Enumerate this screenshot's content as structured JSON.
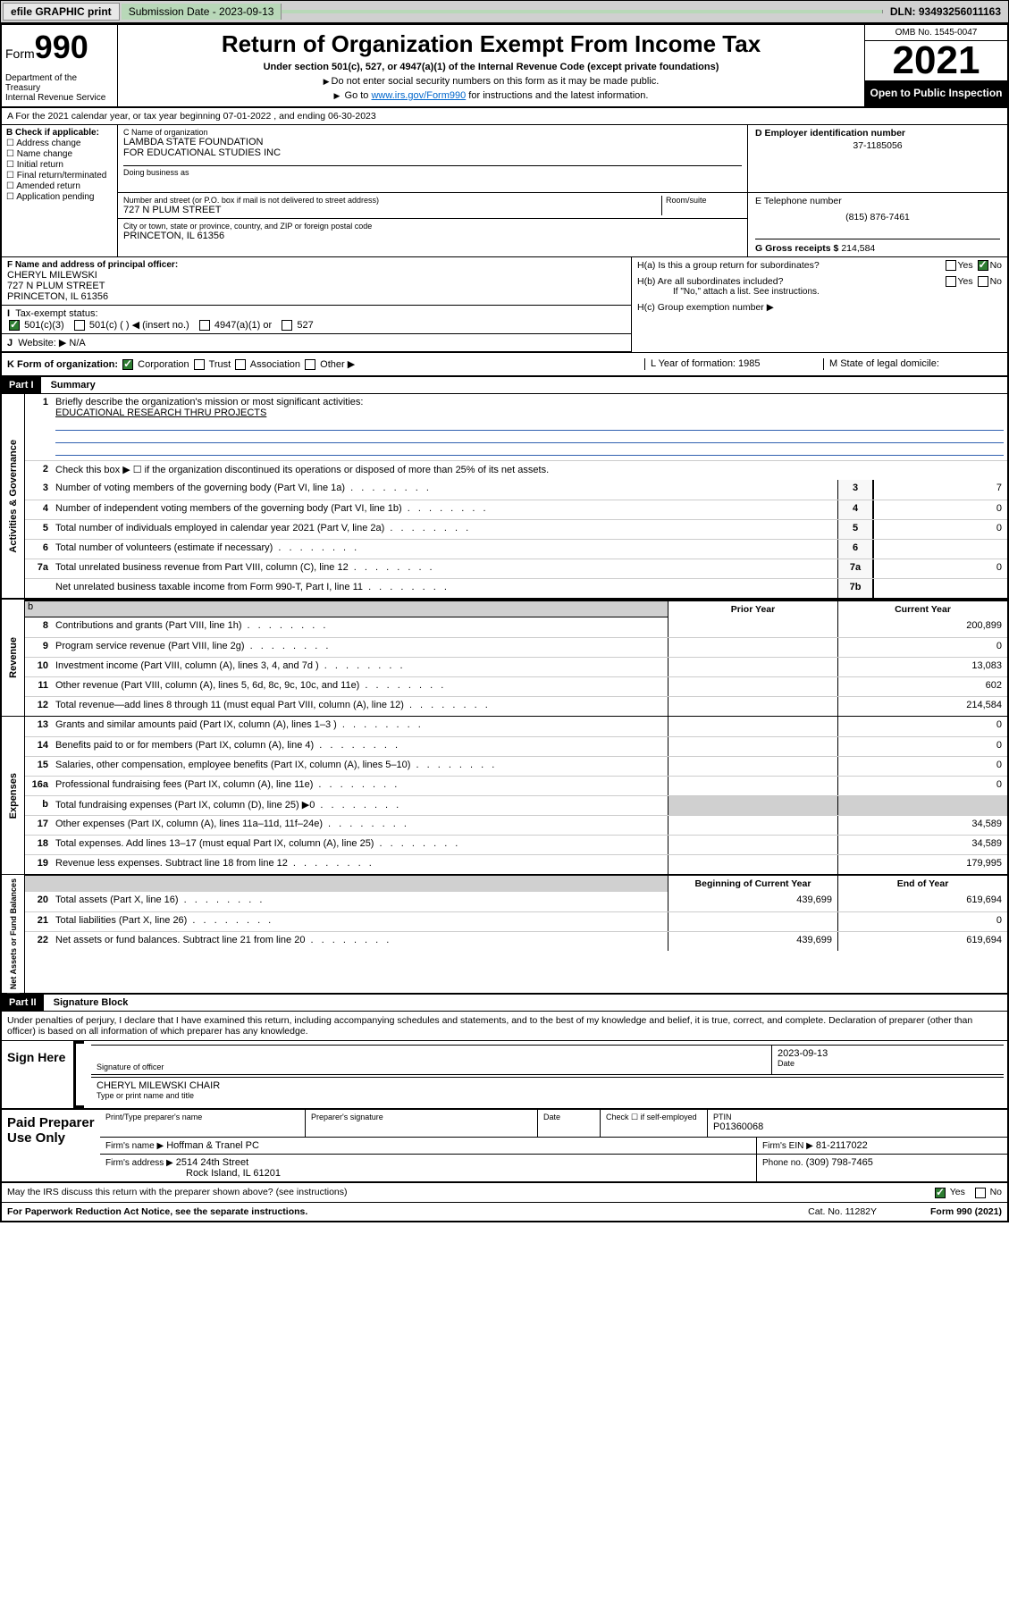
{
  "topbar": {
    "efile_btn": "efile GRAPHIC print",
    "submission_label": "Submission Date - 2023-09-13",
    "dln": "DLN: 93493256011163"
  },
  "header": {
    "form_prefix": "Form",
    "form_num": "990",
    "dept": "Department of the Treasury",
    "irs": "Internal Revenue Service",
    "title": "Return of Organization Exempt From Income Tax",
    "subtitle": "Under section 501(c), 527, or 4947(a)(1) of the Internal Revenue Code (except private foundations)",
    "note1": "Do not enter social security numbers on this form as it may be made public.",
    "note2_pre": "Go to ",
    "note2_link": "www.irs.gov/Form990",
    "note2_post": " for instructions and the latest information.",
    "omb": "OMB No. 1545-0047",
    "year": "2021",
    "open": "Open to Public Inspection"
  },
  "row_a": "A For the 2021 calendar year, or tax year beginning 07-01-2022    , and ending 06-30-2023",
  "col_b": {
    "title": "B Check if applicable:",
    "items": [
      "Address change",
      "Name change",
      "Initial return",
      "Final return/terminated",
      "Amended return",
      "Application pending"
    ]
  },
  "col_c": {
    "name_lbl": "C Name of organization",
    "name1": "LAMBDA STATE FOUNDATION",
    "name2": "FOR EDUCATIONAL STUDIES INC",
    "dba_lbl": "Doing business as",
    "street_lbl": "Number and street (or P.O. box if mail is not delivered to street address)",
    "room_lbl": "Room/suite",
    "street": "727 N PLUM STREET",
    "city_lbl": "City or town, state or province, country, and ZIP or foreign postal code",
    "city": "PRINCETON, IL  61356"
  },
  "col_d": {
    "ein_lbl": "D Employer identification number",
    "ein": "37-1185056",
    "phone_lbl": "E Telephone number",
    "phone": "(815) 876-7461",
    "gross_lbl": "G Gross receipts $",
    "gross": "214,584"
  },
  "f_block": {
    "lbl": "F Name and address of principal officer:",
    "name": "CHERYL MILEWSKI",
    "addr1": "727 N PLUM STREET",
    "addr2": "PRINCETON, IL  61356"
  },
  "h_block": {
    "ha": "H(a)  Is this a group return for subordinates?",
    "hb": "H(b)  Are all subordinates included?",
    "hb_note": "If \"No,\" attach a list. See instructions.",
    "hc": "H(c)  Group exemption number ▶",
    "yes": "Yes",
    "no": "No"
  },
  "i_row": {
    "lbl": "Tax-exempt status:",
    "opts": [
      "501(c)(3)",
      "501(c) (  ) ◀ (insert no.)",
      "4947(a)(1) or",
      "527"
    ]
  },
  "j_row": {
    "lbl": "Website: ▶",
    "val": "N/A"
  },
  "k_row": {
    "lbl": "K Form of organization:",
    "opts": [
      "Corporation",
      "Trust",
      "Association",
      "Other ▶"
    ],
    "l": "L Year of formation: 1985",
    "m": "M State of legal domicile:"
  },
  "part1": {
    "hdr": "Part I",
    "title": "Summary",
    "line1": "Briefly describe the organization's mission or most significant activities:",
    "mission": "EDUCATIONAL RESEARCH THRU PROJECTS",
    "line2": "Check this box ▶ ☐  if the organization discontinued its operations or disposed of more than 25% of its net assets.",
    "lines_gov": [
      {
        "n": "3",
        "t": "Number of voting members of the governing body (Part VI, line 1a)",
        "c": "3",
        "v": "7"
      },
      {
        "n": "4",
        "t": "Number of independent voting members of the governing body (Part VI, line 1b)",
        "c": "4",
        "v": "0"
      },
      {
        "n": "5",
        "t": "Total number of individuals employed in calendar year 2021 (Part V, line 2a)",
        "c": "5",
        "v": "0"
      },
      {
        "n": "6",
        "t": "Total number of volunteers (estimate if necessary)",
        "c": "6",
        "v": ""
      },
      {
        "n": "7a",
        "t": "Total unrelated business revenue from Part VIII, column (C), line 12",
        "c": "7a",
        "v": "0"
      },
      {
        "n": "",
        "t": "Net unrelated business taxable income from Form 990-T, Part I, line 11",
        "c": "7b",
        "v": ""
      }
    ],
    "col_hdr_prior": "Prior Year",
    "col_hdr_curr": "Current Year",
    "lines_rev": [
      {
        "n": "8",
        "t": "Contributions and grants (Part VIII, line 1h)",
        "p": "",
        "c": "200,899"
      },
      {
        "n": "9",
        "t": "Program service revenue (Part VIII, line 2g)",
        "p": "",
        "c": "0"
      },
      {
        "n": "10",
        "t": "Investment income (Part VIII, column (A), lines 3, 4, and 7d )",
        "p": "",
        "c": "13,083"
      },
      {
        "n": "11",
        "t": "Other revenue (Part VIII, column (A), lines 5, 6d, 8c, 9c, 10c, and 11e)",
        "p": "",
        "c": "602"
      },
      {
        "n": "12",
        "t": "Total revenue—add lines 8 through 11 (must equal Part VIII, column (A), line 12)",
        "p": "",
        "c": "214,584"
      }
    ],
    "lines_exp": [
      {
        "n": "13",
        "t": "Grants and similar amounts paid (Part IX, column (A), lines 1–3 )",
        "p": "",
        "c": "0"
      },
      {
        "n": "14",
        "t": "Benefits paid to or for members (Part IX, column (A), line 4)",
        "p": "",
        "c": "0"
      },
      {
        "n": "15",
        "t": "Salaries, other compensation, employee benefits (Part IX, column (A), lines 5–10)",
        "p": "",
        "c": "0"
      },
      {
        "n": "16a",
        "t": "Professional fundraising fees (Part IX, column (A), line 11e)",
        "p": "",
        "c": "0"
      },
      {
        "n": "b",
        "t": "Total fundraising expenses (Part IX, column (D), line 25) ▶0",
        "p": "shade",
        "c": "shade"
      },
      {
        "n": "17",
        "t": "Other expenses (Part IX, column (A), lines 11a–11d, 11f–24e)",
        "p": "",
        "c": "34,589"
      },
      {
        "n": "18",
        "t": "Total expenses. Add lines 13–17 (must equal Part IX, column (A), line 25)",
        "p": "",
        "c": "34,589"
      },
      {
        "n": "19",
        "t": "Revenue less expenses. Subtract line 18 from line 12",
        "p": "",
        "c": "179,995"
      }
    ],
    "col_hdr_begin": "Beginning of Current Year",
    "col_hdr_end": "End of Year",
    "lines_net": [
      {
        "n": "20",
        "t": "Total assets (Part X, line 16)",
        "p": "439,699",
        "c": "619,694"
      },
      {
        "n": "21",
        "t": "Total liabilities (Part X, line 26)",
        "p": "",
        "c": "0"
      },
      {
        "n": "22",
        "t": "Net assets or fund balances. Subtract line 21 from line 20",
        "p": "439,699",
        "c": "619,694"
      }
    ]
  },
  "part2": {
    "hdr": "Part II",
    "title": "Signature Block",
    "intro": "Under penalties of perjury, I declare that I have examined this return, including accompanying schedules and statements, and to the best of my knowledge and belief, it is true, correct, and complete. Declaration of preparer (other than officer) is based on all information of which preparer has any knowledge.",
    "sign_here": "Sign Here",
    "sig_officer": "Signature of officer",
    "sig_date": "2023-09-13",
    "date_lbl": "Date",
    "name_title": "CHERYL MILEWSKI  CHAIR",
    "name_title_lbl": "Type or print name and title",
    "paid": "Paid Preparer Use Only",
    "prep_name_lbl": "Print/Type preparer's name",
    "prep_sig_lbl": "Preparer's signature",
    "prep_date_lbl": "Date",
    "check_lbl": "Check ☐ if self-employed",
    "ptin_lbl": "PTIN",
    "ptin": "P01360068",
    "firm_name_lbl": "Firm's name   ▶",
    "firm_name": "Hoffman & Tranel PC",
    "firm_ein_lbl": "Firm's EIN ▶",
    "firm_ein": "81-2117022",
    "firm_addr_lbl": "Firm's address ▶",
    "firm_addr1": "2514 24th Street",
    "firm_addr2": "Rock Island, IL  61201",
    "phone_lbl": "Phone no.",
    "phone": "(309) 798-7465",
    "discuss": "May the IRS discuss this return with the preparer shown above? (see instructions)",
    "yes": "Yes",
    "no": "No"
  },
  "footer": {
    "left": "For Paperwork Reduction Act Notice, see the separate instructions.",
    "mid": "Cat. No. 11282Y",
    "right": "Form 990 (2021)"
  },
  "labels": {
    "gov": "Activities & Governance",
    "rev": "Revenue",
    "exp": "Expenses",
    "net": "Net Assets or Fund Balances"
  }
}
